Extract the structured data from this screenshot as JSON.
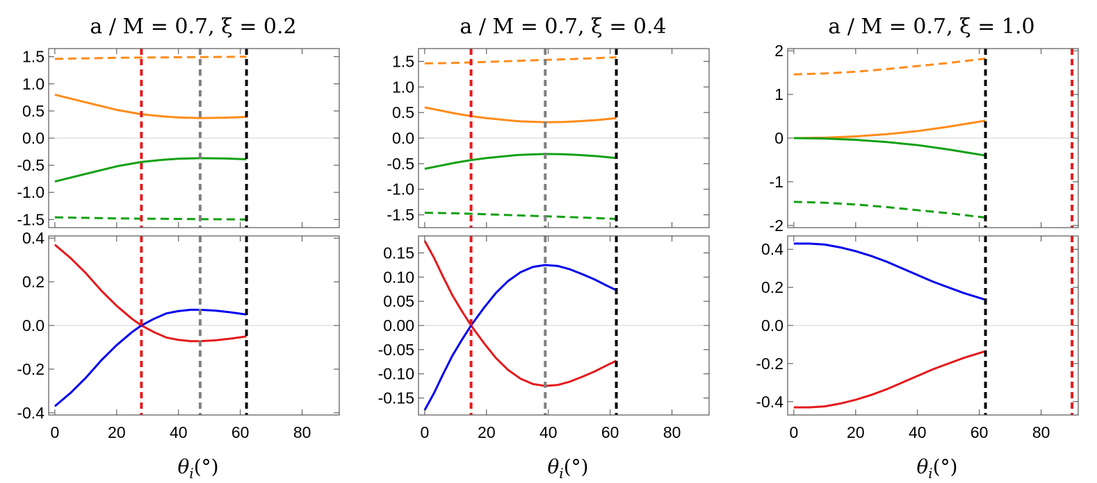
{
  "chart_data": [
    {
      "type": "line",
      "title": "a / M = 0.7, ξ = 0.2",
      "xlabel": "θ_i(°)",
      "xlim": [
        -2,
        92
      ],
      "xticks": [
        0,
        20,
        40,
        60,
        80
      ],
      "vlines": [
        {
          "x": 28,
          "color": "#e41a1c"
        },
        {
          "x": 47,
          "color": "#808080"
        },
        {
          "x": 62,
          "color": "#000000"
        }
      ],
      "top": {
        "ylim": [
          -1.65,
          1.65
        ],
        "yticks": [
          -1.5,
          -1.0,
          -0.5,
          0.0,
          0.5,
          1.0,
          1.5
        ],
        "ytick_labels": [
          "-1.5",
          "-1.0",
          "-0.5",
          "0.0",
          "0.5",
          "1.0",
          "1.5"
        ],
        "series": [
          {
            "color": "#ff8c1a",
            "dash": true,
            "x": [
              0,
              10,
              20,
              28,
              40,
              50,
              62
            ],
            "y": [
              1.46,
              1.47,
              1.48,
              1.485,
              1.49,
              1.495,
              1.5
            ]
          },
          {
            "color": "#ff8c1a",
            "dash": false,
            "x": [
              0,
              10,
              20,
              28,
              35,
              40,
              47,
              55,
              62
            ],
            "y": [
              0.8,
              0.66,
              0.52,
              0.44,
              0.4,
              0.38,
              0.37,
              0.375,
              0.39
            ]
          },
          {
            "color": "#12a012",
            "dash": false,
            "x": [
              0,
              10,
              20,
              28,
              35,
              40,
              47,
              55,
              62
            ],
            "y": [
              -0.8,
              -0.66,
              -0.52,
              -0.44,
              -0.4,
              -0.38,
              -0.37,
              -0.375,
              -0.39
            ]
          },
          {
            "color": "#12a012",
            "dash": true,
            "x": [
              0,
              10,
              20,
              28,
              40,
              50,
              62
            ],
            "y": [
              -1.46,
              -1.47,
              -1.48,
              -1.485,
              -1.49,
              -1.495,
              -1.5
            ]
          }
        ]
      },
      "bottom": {
        "ylim": [
          -0.41,
          0.41
        ],
        "yticks": [
          -0.4,
          -0.2,
          0.0,
          0.2,
          0.4
        ],
        "ytick_labels": [
          "-0.4",
          "-0.2",
          "0.0",
          "0.2",
          "0.4"
        ],
        "series": [
          {
            "color": "#e41a1c",
            "x": [
              0,
              5,
              10,
              15,
              20,
              25,
              28,
              32,
              36,
              40,
              44,
              47,
              52,
              57,
              62
            ],
            "y": [
              0.37,
              0.31,
              0.24,
              0.16,
              0.09,
              0.03,
              0.0,
              -0.03,
              -0.055,
              -0.066,
              -0.072,
              -0.072,
              -0.068,
              -0.06,
              -0.05
            ]
          },
          {
            "color": "#0000ee",
            "x": [
              0,
              5,
              10,
              15,
              20,
              25,
              28,
              32,
              36,
              40,
              44,
              47,
              52,
              57,
              62
            ],
            "y": [
              -0.37,
              -0.31,
              -0.24,
              -0.16,
              -0.09,
              -0.03,
              0.0,
              0.03,
              0.055,
              0.066,
              0.072,
              0.072,
              0.068,
              0.06,
              0.05
            ]
          }
        ]
      }
    },
    {
      "type": "line",
      "title": "a / M = 0.7, ξ = 0.4",
      "xlabel": "θ_i(°)",
      "xlim": [
        -2,
        92
      ],
      "xticks": [
        0,
        20,
        40,
        60,
        80
      ],
      "vlines": [
        {
          "x": 15,
          "color": "#e41a1c"
        },
        {
          "x": 39,
          "color": "#808080"
        },
        {
          "x": 62,
          "color": "#000000"
        }
      ],
      "top": {
        "ylim": [
          -1.75,
          1.75
        ],
        "yticks": [
          -1.5,
          -1.0,
          -0.5,
          0.0,
          0.5,
          1.0,
          1.5
        ],
        "ytick_labels": [
          "-1.5",
          "-1.0",
          "-0.5",
          "0.0",
          "0.5",
          "1.0",
          "1.5"
        ],
        "series": [
          {
            "color": "#ff8c1a",
            "dash": true,
            "x": [
              0,
              10,
              20,
              30,
              40,
              50,
              62
            ],
            "y": [
              1.46,
              1.47,
              1.49,
              1.51,
              1.53,
              1.55,
              1.58
            ]
          },
          {
            "color": "#ff8c1a",
            "dash": false,
            "x": [
              0,
              10,
              15,
              20,
              30,
              39,
              45,
              50,
              56,
              62
            ],
            "y": [
              0.6,
              0.48,
              0.43,
              0.39,
              0.33,
              0.31,
              0.315,
              0.33,
              0.355,
              0.39
            ]
          },
          {
            "color": "#12a012",
            "dash": false,
            "x": [
              0,
              10,
              15,
              20,
              30,
              39,
              45,
              50,
              56,
              62
            ],
            "y": [
              -0.6,
              -0.48,
              -0.43,
              -0.39,
              -0.33,
              -0.31,
              -0.315,
              -0.33,
              -0.355,
              -0.39
            ]
          },
          {
            "color": "#12a012",
            "dash": true,
            "x": [
              0,
              10,
              20,
              30,
              40,
              50,
              62
            ],
            "y": [
              -1.46,
              -1.47,
              -1.49,
              -1.51,
              -1.53,
              -1.55,
              -1.58
            ]
          }
        ]
      },
      "bottom": {
        "ylim": [
          -0.185,
          0.185
        ],
        "yticks": [
          -0.15,
          -0.1,
          -0.05,
          0.0,
          0.05,
          0.1,
          0.15
        ],
        "ytick_labels": [
          "-0.15",
          "-0.10",
          "-0.05",
          "0.00",
          "0.05",
          "0.10",
          "0.15"
        ],
        "series": [
          {
            "color": "#e41a1c",
            "x": [
              0,
              3,
              6,
              9,
              12,
              15,
              19,
              23,
              27,
              31,
              35,
              39,
              43,
              47,
              51,
              55,
              59,
              62
            ],
            "y": [
              0.175,
              0.14,
              0.1,
              0.062,
              0.03,
              0.0,
              -0.035,
              -0.067,
              -0.092,
              -0.11,
              -0.121,
              -0.125,
              -0.123,
              -0.116,
              -0.106,
              -0.095,
              -0.082,
              -0.073
            ]
          },
          {
            "color": "#0000ee",
            "x": [
              0,
              3,
              6,
              9,
              12,
              15,
              19,
              23,
              27,
              31,
              35,
              39,
              43,
              47,
              51,
              55,
              59,
              62
            ],
            "y": [
              -0.175,
              -0.14,
              -0.1,
              -0.062,
              -0.03,
              0.0,
              0.035,
              0.067,
              0.092,
              0.11,
              0.121,
              0.125,
              0.123,
              0.116,
              0.106,
              0.095,
              0.082,
              0.073
            ]
          }
        ]
      }
    },
    {
      "type": "line",
      "title": "a / M = 0.7, ξ = 1.0",
      "xlabel": "θ_i(°)",
      "xlim": [
        -2,
        92
      ],
      "xticks": [
        0,
        20,
        40,
        60,
        80
      ],
      "vlines": [
        {
          "x": 62,
          "color": "#000000"
        },
        {
          "x": 90,
          "color": "#e41a1c"
        }
      ],
      "top": {
        "ylim": [
          -2.05,
          2.05
        ],
        "yticks": [
          -2,
          -1,
          0,
          1,
          2
        ],
        "ytick_labels": [
          "-2",
          "-1",
          "0",
          "1",
          "2"
        ],
        "series": [
          {
            "color": "#ff8c1a",
            "dash": true,
            "x": [
              0,
              10,
              20,
              30,
              40,
              50,
              62
            ],
            "y": [
              1.46,
              1.48,
              1.52,
              1.58,
              1.65,
              1.72,
              1.82
            ]
          },
          {
            "color": "#ff8c1a",
            "dash": false,
            "x": [
              0,
              10,
              20,
              30,
              40,
              50,
              62
            ],
            "y": [
              0.0,
              0.01,
              0.04,
              0.09,
              0.16,
              0.26,
              0.4
            ]
          },
          {
            "color": "#12a012",
            "dash": false,
            "x": [
              0,
              10,
              20,
              30,
              40,
              50,
              62
            ],
            "y": [
              0.0,
              -0.01,
              -0.04,
              -0.09,
              -0.16,
              -0.26,
              -0.4
            ]
          },
          {
            "color": "#12a012",
            "dash": true,
            "x": [
              0,
              10,
              20,
              30,
              40,
              50,
              62
            ],
            "y": [
              -1.46,
              -1.48,
              -1.52,
              -1.58,
              -1.65,
              -1.72,
              -1.82
            ]
          }
        ]
      },
      "bottom": {
        "ylim": [
          -0.47,
          0.47
        ],
        "yticks": [
          -0.4,
          -0.2,
          0.0,
          0.2,
          0.4
        ],
        "ytick_labels": [
          "-0.4",
          "-0.2",
          "0.0",
          "0.2",
          "0.4"
        ],
        "series": [
          {
            "color": "#0000ee",
            "x": [
              0,
              5,
              10,
              15,
              20,
              25,
              30,
              35,
              40,
              45,
              50,
              55,
              62
            ],
            "y": [
              0.43,
              0.43,
              0.425,
              0.41,
              0.39,
              0.365,
              0.335,
              0.3,
              0.265,
              0.23,
              0.2,
              0.17,
              0.135
            ]
          },
          {
            "color": "#e41a1c",
            "x": [
              0,
              5,
              10,
              15,
              20,
              25,
              30,
              35,
              40,
              45,
              50,
              55,
              62
            ],
            "y": [
              -0.43,
              -0.43,
              -0.425,
              -0.41,
              -0.39,
              -0.365,
              -0.335,
              -0.3,
              -0.265,
              -0.23,
              -0.2,
              -0.17,
              -0.135
            ]
          }
        ]
      }
    }
  ]
}
